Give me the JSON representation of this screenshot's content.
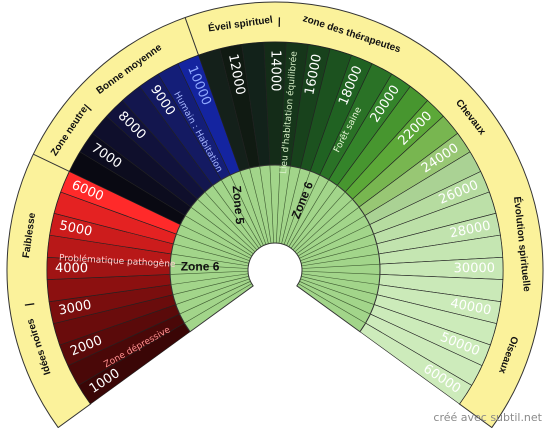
{
  "chart_data": {
    "type": "radial-scale",
    "start_angle_deg": 216,
    "end_angle_deg": -36,
    "segments": [
      {
        "value": "1000",
        "color": "#3a0606",
        "text_color": "#ffffff"
      },
      {
        "value": "",
        "color": "#4a0808",
        "text_color": "#ffffff"
      },
      {
        "value": "2000",
        "color": "#5a0a0a",
        "text_color": "#ffffff"
      },
      {
        "value": "",
        "color": "#6a0c0c",
        "text_color": "#ffffff"
      },
      {
        "value": "3000",
        "color": "#7a0e0e",
        "text_color": "#ffffff"
      },
      {
        "value": "",
        "color": "#8c1010",
        "text_color": "#ffffff"
      },
      {
        "value": "4000",
        "color": "#a01414",
        "text_color": "#ffffff"
      },
      {
        "value": "",
        "color": "#b81818",
        "text_color": "#ffffff"
      },
      {
        "value": "5000",
        "color": "#cc1c1c",
        "text_color": "#ffffff"
      },
      {
        "value": "",
        "color": "#e42222",
        "text_color": "#ffffff"
      },
      {
        "value": "6000",
        "color": "#ff2a2a",
        "text_color": "#ffffff"
      },
      {
        "value": "",
        "color": "#090912",
        "text_color": "#ffffff"
      },
      {
        "value": "7000",
        "color": "#0c0c1e",
        "text_color": "#ffffff"
      },
      {
        "value": "",
        "color": "#0f0f2c",
        "text_color": "#ffffff"
      },
      {
        "value": "8000",
        "color": "#11123c",
        "text_color": "#ffffff"
      },
      {
        "value": "",
        "color": "#13164e",
        "text_color": "#ffffff"
      },
      {
        "value": "9000",
        "color": "#141a62",
        "text_color": "#ffffff"
      },
      {
        "value": "",
        "color": "#141e78",
        "text_color": "#ffffff"
      },
      {
        "value": "10000",
        "color": "#1424a0",
        "text_color": "#8fa8ff"
      },
      {
        "value": "",
        "color": "#14201a",
        "text_color": "#ffffff"
      },
      {
        "value": "12000",
        "color": "#101a12",
        "text_color": "#ffffff"
      },
      {
        "value": "",
        "color": "#12221a",
        "text_color": "#ffffff"
      },
      {
        "value": "14000",
        "color": "#142c18",
        "text_color": "#ffffff"
      },
      {
        "value": "",
        "color": "#16361a",
        "text_color": "#ffffff"
      },
      {
        "value": "16000",
        "color": "#18421c",
        "text_color": "#ffffff"
      },
      {
        "value": "",
        "color": "#1c521f",
        "text_color": "#ffffff"
      },
      {
        "value": "18000",
        "color": "#206222",
        "text_color": "#ffffff"
      },
      {
        "value": "",
        "color": "#2a7226",
        "text_color": "#ffffff"
      },
      {
        "value": "20000",
        "color": "#34842a",
        "text_color": "#ffffff"
      },
      {
        "value": "",
        "color": "#47962f",
        "text_color": "#ffffff"
      },
      {
        "value": "22000",
        "color": "#5ca838",
        "text_color": "#ffffff"
      },
      {
        "value": "",
        "color": "#78b650",
        "text_color": "#ffffff"
      },
      {
        "value": "24000",
        "color": "#98c774",
        "text_color": "#ffffff"
      },
      {
        "value": "",
        "color": "#aad294",
        "text_color": "#ffffff"
      },
      {
        "value": "26000",
        "color": "#b6dca0",
        "text_color": "#ffffff"
      },
      {
        "value": "",
        "color": "#bce0a8",
        "text_color": "#ffffff"
      },
      {
        "value": "28000",
        "color": "#c1e3ae",
        "text_color": "#ffffff"
      },
      {
        "value": "",
        "color": "#c5e6b2",
        "text_color": "#ffffff"
      },
      {
        "value": "30000",
        "color": "#c8e8b6",
        "text_color": "#ffffff"
      },
      {
        "value": "",
        "color": "#cae9b8",
        "text_color": "#ffffff"
      },
      {
        "value": "40000",
        "color": "#cbeab9",
        "text_color": "#ffffff"
      },
      {
        "value": "",
        "color": "#ccebba",
        "text_color": "#ffffff"
      },
      {
        "value": "50000",
        "color": "#ccebba",
        "text_color": "#ffffff"
      },
      {
        "value": "",
        "color": "#cdebbb",
        "text_color": "#ffffff"
      },
      {
        "value": "60000",
        "color": "#cdebbb",
        "text_color": "#ffffff"
      }
    ],
    "annotations": [
      {
        "text": "Zone dépressive",
        "at_segment": 1.2,
        "color": "#ff9090"
      },
      {
        "text": "Problématique pathogène",
        "at_segment": 7.0,
        "color": "#ffd0d0"
      },
      {
        "text": "Humain : Habitation",
        "at_segment": 17.3,
        "color": "#a8b8ff"
      },
      {
        "text": "Lieu d'habitation équilibrée",
        "at_segment": 23.4,
        "color": "#d8f0c8"
      },
      {
        "text": "Forêt saine",
        "at_segment": 27.4,
        "color": "#e6f5d6"
      }
    ],
    "outer_band": {
      "color": "#fbf29b",
      "labels": [
        {
          "text": "Idées noires",
          "at_deg": 198
        },
        {
          "text": "|",
          "at_deg": 188
        },
        {
          "text": "Faiblesse",
          "at_deg": 172
        },
        {
          "text": "Zone neutre",
          "at_deg": 146
        },
        {
          "text": "|",
          "at_deg": 139
        },
        {
          "text": "Bonne moyenne",
          "at_deg": 126
        },
        {
          "text": "Éveil spirituel",
          "at_deg": 98
        },
        {
          "text": "|",
          "at_deg": 89
        },
        {
          "text": "zone des thérapeutes",
          "at_deg": 72
        },
        {
          "text": "Chevaux",
          "at_deg": 38
        },
        {
          "text": "Évolution spirituelle",
          "at_deg": 6
        },
        {
          "text": "Oiseaux",
          "at_deg": -20
        }
      ]
    },
    "inner_band": {
      "color": "#a2d58a",
      "labels": [
        {
          "text": "Zone 6",
          "at_deg": 178
        },
        {
          "text": "Zone 5",
          "at_deg": 120
        },
        {
          "text": "Zone 6",
          "at_deg": 68
        }
      ]
    }
  },
  "watermark": "créé avec subtil.net"
}
